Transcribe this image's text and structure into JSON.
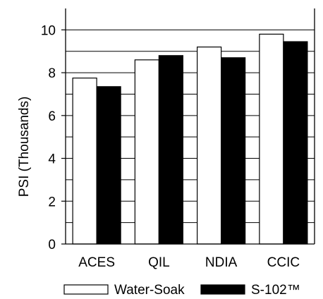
{
  "chart_data": {
    "type": "bar",
    "title": "",
    "xlabel": "",
    "ylabel": "PSI (Thousands)",
    "ylim": [
      0,
      11
    ],
    "yticks": [
      0,
      2,
      4,
      6,
      8,
      10
    ],
    "grid": true,
    "legend_position": "bottom",
    "categories": [
      "ACES",
      "QIL",
      "NDIA",
      "CCIC"
    ],
    "series": [
      {
        "name": "Water-Soak",
        "color": "#ffffff",
        "values": [
          7.75,
          8.6,
          9.2,
          9.8
        ]
      },
      {
        "name": "S-102™",
        "color": "#000000",
        "values": [
          7.35,
          8.8,
          8.7,
          9.45
        ]
      }
    ]
  }
}
